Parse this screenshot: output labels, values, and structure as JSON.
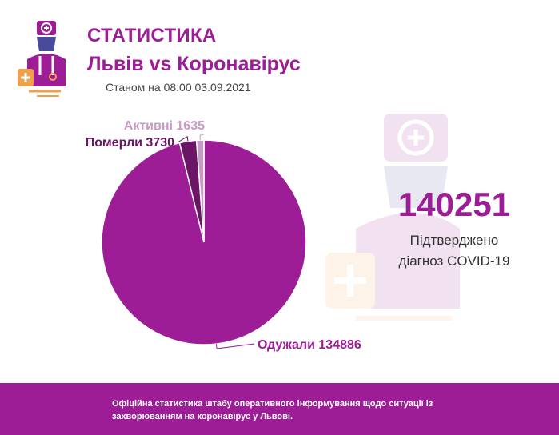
{
  "header": {
    "title": "СТАТИСТИКА",
    "subtitle": "Львів vs Коронавірус",
    "date": "Станом на 08:00 03.09.2021"
  },
  "summary": {
    "confirmed_value": "140251",
    "confirmed_caption_line1": "Підтверджено",
    "confirmed_caption_line2": "діагноз COVID-19"
  },
  "footer": {
    "text": "Офіційна статистика штабу оперативного інформування щодо ситуації із захворюванням на коронавірус у Львові."
  },
  "colors": {
    "brand": "#9c1d96",
    "recovered": "#9c1d96",
    "deaths": "#6b1566",
    "active": "#c79ac4",
    "logo_orange": "#f0a04b",
    "logo_blue": "#4a4a9c"
  },
  "icons": [
    "doctor-logo-icon",
    "doctor-watermark-icon"
  ],
  "chart_data": {
    "type": "pie",
    "title": "",
    "slices": [
      {
        "label": "Одужали",
        "value": 134886,
        "display": "Одужали 134886",
        "color": "#9c1d96"
      },
      {
        "label": "Померли",
        "value": 3730,
        "display": "Померли 3730",
        "color": "#6b1566"
      },
      {
        "label": "Активні",
        "value": 1635,
        "display": "Активні 1635",
        "color": "#c79ac4"
      }
    ]
  }
}
